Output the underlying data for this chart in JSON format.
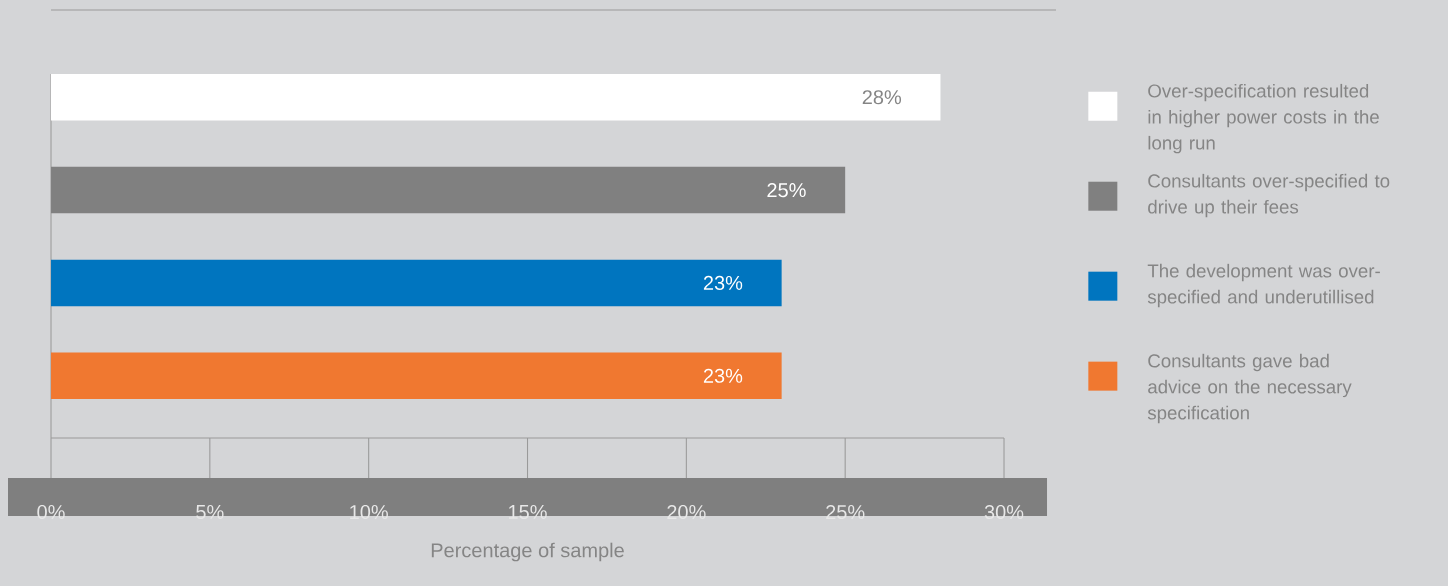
{
  "chart_data": {
    "type": "bar",
    "orientation": "horizontal",
    "xlabel": "Percentage of sample",
    "categories": [
      null,
      null,
      null,
      null
    ],
    "series": [
      {
        "name": "Over-specification resulted in higher power costs in the long run",
        "color": "#ffffff",
        "values": [
          28,
          null,
          null,
          null
        ],
        "value_labels": [
          "28%",
          null,
          null,
          null
        ]
      },
      {
        "name": "Consultants over-specified to drive up their fees",
        "color": "#808080",
        "values": [
          null,
          25,
          null,
          null
        ],
        "value_labels": [
          null,
          "25%",
          null,
          null
        ]
      },
      {
        "name": "The development was over-specified and underutillised",
        "color": "#0075bf",
        "values": [
          null,
          null,
          23,
          null
        ],
        "value_labels": [
          null,
          null,
          "23%",
          null
        ]
      },
      {
        "name": "Consultants gave bad advice on the necessary specification",
        "color": "#f07830",
        "values": [
          null,
          null,
          null,
          23
        ],
        "value_labels": [
          null,
          null,
          null,
          "23%"
        ]
      }
    ],
    "xlim": [
      0,
      30
    ],
    "xticks": [
      {
        "value": 0,
        "label": "0%"
      },
      {
        "value": 5,
        "label": "5%"
      },
      {
        "value": 10,
        "label": "10%"
      },
      {
        "value": 15,
        "label": "15%"
      },
      {
        "value": 20,
        "label": "20%"
      },
      {
        "value": 25,
        "label": "25%"
      },
      {
        "value": 30,
        "label": "30%"
      }
    ],
    "legend": "right",
    "grid": false
  }
}
